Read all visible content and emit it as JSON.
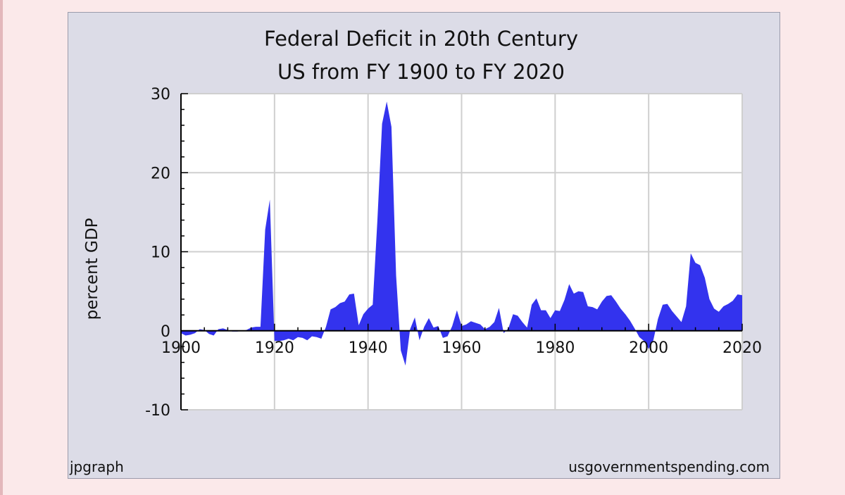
{
  "page": {
    "background": "#fbe9ea"
  },
  "chart_data": {
    "type": "area",
    "title": "Federal Deficit in 20th Century",
    "subtitle": "US from FY 1900 to FY 2020",
    "xlabel": "",
    "ylabel": "percent GDP",
    "xlim": [
      1900,
      2020
    ],
    "ylim": [
      -10,
      30
    ],
    "xticks": [
      1900,
      1920,
      1940,
      1960,
      1980,
      2000,
      2020
    ],
    "yticks": [
      -10,
      0,
      10,
      20,
      30
    ],
    "grid": true,
    "legend": "none",
    "fill_color": "#3333ee",
    "plot_background": "#ffffff",
    "frame_background": "#dcdce7",
    "series": [
      {
        "x": [
          1900,
          1901,
          1902,
          1903,
          1904,
          1905,
          1906,
          1907,
          1908,
          1909,
          1910,
          1911,
          1912,
          1913,
          1914,
          1915,
          1916,
          1917,
          1918,
          1919,
          1920,
          1921,
          1922,
          1923,
          1924,
          1925,
          1926,
          1927,
          1928,
          1929,
          1930,
          1931,
          1932,
          1933,
          1934,
          1935,
          1936,
          1937,
          1938,
          1939,
          1940,
          1941,
          1942,
          1943,
          1944,
          1945,
          1946,
          1947,
          1948,
          1949,
          1950,
          1951,
          1952,
          1953,
          1954,
          1955,
          1956,
          1957,
          1958,
          1959,
          1960,
          1961,
          1962,
          1963,
          1964,
          1965,
          1966,
          1967,
          1968,
          1969,
          1970,
          1971,
          1972,
          1973,
          1974,
          1975,
          1976,
          1977,
          1978,
          1979,
          1980,
          1981,
          1982,
          1983,
          1984,
          1985,
          1986,
          1987,
          1988,
          1989,
          1990,
          1991,
          1992,
          1993,
          1994,
          1995,
          1996,
          1997,
          1998,
          1999,
          2000,
          2001,
          2002,
          2003,
          2004,
          2005,
          2006,
          2007,
          2008,
          2009,
          2010,
          2011,
          2012,
          2013,
          2014,
          2015,
          2016,
          2017,
          2018,
          2019,
          2020
        ],
        "y": [
          -0.3,
          -0.6,
          -0.5,
          -0.3,
          0.2,
          0.1,
          -0.4,
          -0.6,
          0.2,
          0.3,
          0.1,
          -0.1,
          -0.1,
          0,
          0.1,
          0.4,
          0.5,
          0.5,
          12.8,
          16.6,
          -1.3,
          -1.3,
          -1.2,
          -1.0,
          -1.2,
          -0.8,
          -0.9,
          -1.2,
          -0.7,
          -0.8,
          -1.0,
          0.5,
          2.7,
          3.0,
          3.5,
          3.7,
          4.6,
          4.7,
          0.7,
          2.1,
          2.8,
          3.3,
          13.9,
          26.2,
          29.0,
          25.8,
          7.0,
          -2.5,
          -4.4,
          0.2,
          1.7,
          -1.2,
          0.5,
          1.6,
          0.4,
          0.6,
          -0.9,
          -0.7,
          0.6,
          2.6,
          0.6,
          0.8,
          1.2,
          1.0,
          0.8,
          0.2,
          0.5,
          1.1,
          2.9,
          -0.3,
          0.3,
          2.1,
          1.9,
          1.1,
          0.4,
          3.3,
          4.1,
          2.6,
          2.6,
          1.6,
          2.6,
          2.5,
          3.9,
          5.9,
          4.7,
          5.0,
          4.9,
          3.1,
          3.0,
          2.7,
          3.7,
          4.4,
          4.5,
          3.7,
          2.8,
          2.1,
          1.3,
          0.3,
          -0.8,
          -1.3,
          -2.3,
          -1.2,
          1.5,
          3.3,
          3.4,
          2.5,
          1.8,
          1.1,
          3.1,
          9.8,
          8.6,
          8.3,
          6.7,
          4.0,
          2.8,
          2.4,
          3.1,
          3.4,
          3.8,
          4.6,
          4.5
        ]
      }
    ]
  },
  "footer": {
    "left": "jpgraph",
    "right": "usgovernmentspending.com"
  }
}
